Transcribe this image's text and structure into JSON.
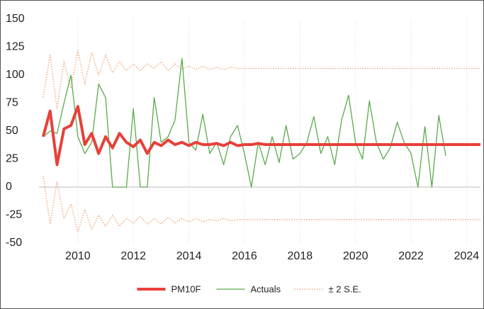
{
  "chart_data": {
    "type": "line",
    "x": [
      2008.75,
      2009,
      2009.25,
      2009.5,
      2009.75,
      2010,
      2010.25,
      2010.5,
      2010.75,
      2011,
      2011.25,
      2011.5,
      2011.75,
      2012,
      2012.25,
      2012.5,
      2012.75,
      2013,
      2013.25,
      2013.5,
      2013.75,
      2014,
      2014.25,
      2014.5,
      2014.75,
      2015,
      2015.25,
      2015.5,
      2015.75,
      2016,
      2016.25,
      2016.5,
      2016.75,
      2017,
      2017.25,
      2017.5,
      2017.75,
      2018,
      2018.25,
      2018.5,
      2018.75,
      2019,
      2019.25,
      2019.5,
      2019.75,
      2020,
      2020.25,
      2020.5,
      2020.75,
      2021,
      2021.25,
      2021.5,
      2021.75,
      2022,
      2022.25,
      2022.5,
      2022.75,
      2023,
      2023.25,
      2023.5,
      2023.75,
      2024,
      2024.25,
      2024.5
    ],
    "series": [
      {
        "name": "PM10F",
        "color": "#e8403a",
        "width": 4,
        "dash": "none",
        "values": [
          45,
          68,
          20,
          52,
          55,
          72,
          38,
          48,
          30,
          45,
          35,
          48,
          40,
          36,
          42,
          30,
          40,
          37,
          42,
          38,
          40,
          37,
          40,
          38,
          38,
          39,
          37,
          40,
          37,
          38,
          38,
          39,
          38,
          38,
          38,
          38,
          38,
          38,
          38,
          38,
          38,
          38,
          38,
          38,
          38,
          38,
          38,
          38,
          38,
          38,
          38,
          38,
          38,
          38,
          38,
          38,
          38,
          38,
          38,
          38,
          38,
          38,
          38,
          38
        ]
      },
      {
        "name": "Actuals",
        "color": "#5aaa4a",
        "width": 1.3,
        "dash": "none",
        "values": [
          45,
          50,
          48,
          75,
          100,
          45,
          30,
          40,
          92,
          80,
          0,
          0,
          0,
          70,
          0,
          0,
          80,
          40,
          45,
          60,
          115,
          40,
          33,
          65,
          30,
          40,
          20,
          45,
          55,
          30,
          0,
          40,
          20,
          45,
          22,
          55,
          25,
          30,
          40,
          63,
          30,
          45,
          20,
          60,
          82,
          40,
          25,
          77,
          40,
          25,
          35,
          58,
          40,
          30,
          0,
          54,
          0,
          64,
          28,
          null,
          null,
          null,
          null,
          null
        ]
      },
      {
        "name": "± 2 S.E.",
        "color": "#f0a070",
        "width": 1.3,
        "dash": "1.5 2",
        "upper": [
          80,
          118,
          70,
          112,
          88,
          122,
          92,
          120,
          100,
          118,
          102,
          112,
          104,
          110,
          104,
          110,
          106,
          112,
          104,
          110,
          105,
          108,
          105,
          108,
          105,
          107,
          105,
          107,
          106,
          106,
          106,
          106,
          106,
          106,
          106,
          106,
          106,
          106,
          106,
          106,
          106,
          106,
          106,
          106,
          106,
          106,
          106,
          106,
          106,
          106,
          106,
          106,
          106,
          106,
          106,
          106,
          106,
          106,
          106,
          106,
          106,
          106,
          106,
          106
        ],
        "lower": [
          10,
          -33,
          5,
          -28,
          -15,
          -40,
          -20,
          -38,
          -25,
          -35,
          -25,
          -35,
          -28,
          -32,
          -26,
          -33,
          -28,
          -33,
          -27,
          -32,
          -28,
          -31,
          -28,
          -31,
          -29,
          -30,
          -28,
          -30,
          -29,
          -29,
          -29,
          -29,
          -29,
          -29,
          -29,
          -29,
          -29,
          -29,
          -29,
          -29,
          -29,
          -29,
          -29,
          -29,
          -29,
          -29,
          -29,
          -29,
          -29,
          -29,
          -29,
          -29,
          -29,
          -29,
          -29,
          -29,
          -29,
          -29,
          -29,
          -29,
          -29,
          -29,
          -29,
          -29
        ]
      }
    ],
    "xlim": [
      2008.6,
      2024.5
    ],
    "xticks": [
      2010,
      2012,
      2014,
      2016,
      2018,
      2020,
      2022,
      2024
    ],
    "ylim": [
      -50,
      150
    ],
    "yticks": [
      150,
      125,
      100,
      75,
      50,
      25,
      0,
      -25,
      -50
    ],
    "grid": true
  }
}
